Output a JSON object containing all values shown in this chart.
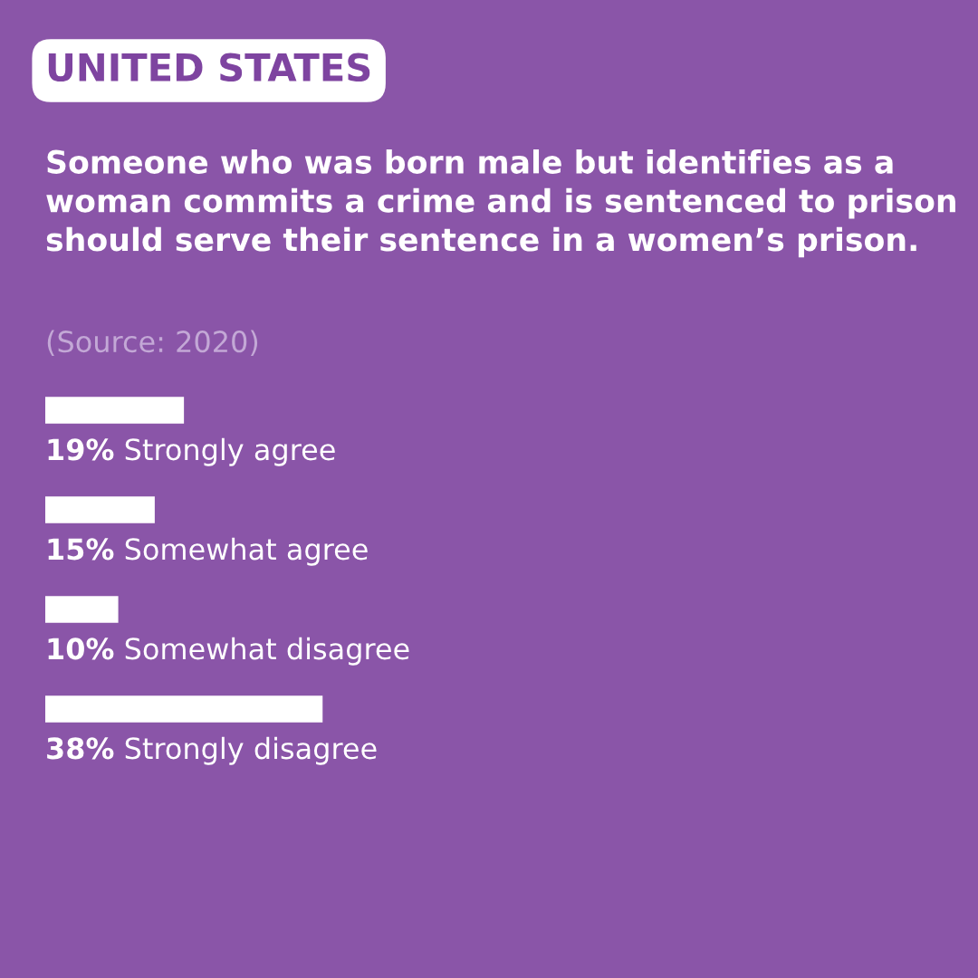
{
  "chart_data": {
    "type": "bar",
    "orientation": "horizontal",
    "title": "UNITED STATES",
    "subtitle": "Someone who was born male but identifies as a woman commits a crime and is sentenced to prison should serve their sentence in a women’s prison.",
    "annotations": [
      "(Source: 2020)"
    ],
    "categories": [
      "Strongly agree",
      "Somewhat agree",
      "Somewhat disagree",
      "Strongly disagree"
    ],
    "values": [
      19,
      15,
      10,
      38
    ],
    "value_labels": [
      "19%",
      "15%",
      "10%",
      "38%"
    ],
    "color": "#ffffff",
    "tick_labels": false
  }
}
